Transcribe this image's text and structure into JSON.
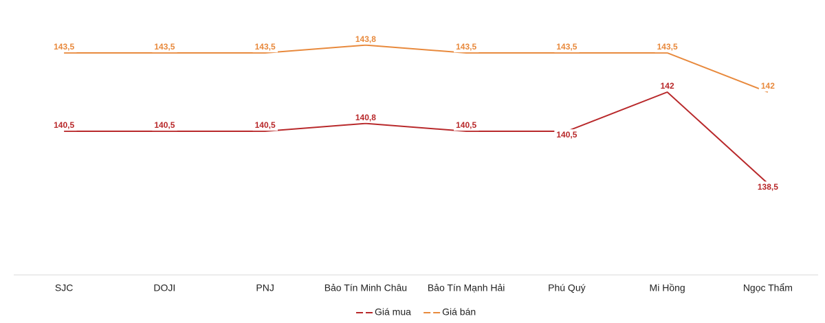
{
  "chart_data": {
    "type": "line",
    "categories": [
      "SJC",
      "DOJI",
      "PNJ",
      "Bảo Tín Minh Châu",
      "Bảo Tín Mạnh Hải",
      "Phú Quý",
      "Mi Hồng",
      "Ngọc Thẩm"
    ],
    "series": [
      {
        "name": "Giá mua",
        "color": "#b8282a",
        "values": [
          140.5,
          140.5,
          140.5,
          140.8,
          140.5,
          140.5,
          142,
          138.5
        ],
        "value_labels": [
          "140,5",
          "140,5",
          "140,5",
          "140,8",
          "140,5",
          "140,5",
          "142",
          "138,5"
        ]
      },
      {
        "name": "Giá bán",
        "color": "#e8893c",
        "values": [
          143.5,
          143.5,
          143.5,
          143.8,
          143.5,
          143.5,
          143.5,
          142
        ],
        "value_labels": [
          "143,5",
          "143,5",
          "143,5",
          "143,8",
          "143,5",
          "143,5",
          "143,5",
          "142"
        ]
      }
    ],
    "ylim": [
      135,
      145
    ],
    "grid": false,
    "legend": "bottom"
  }
}
